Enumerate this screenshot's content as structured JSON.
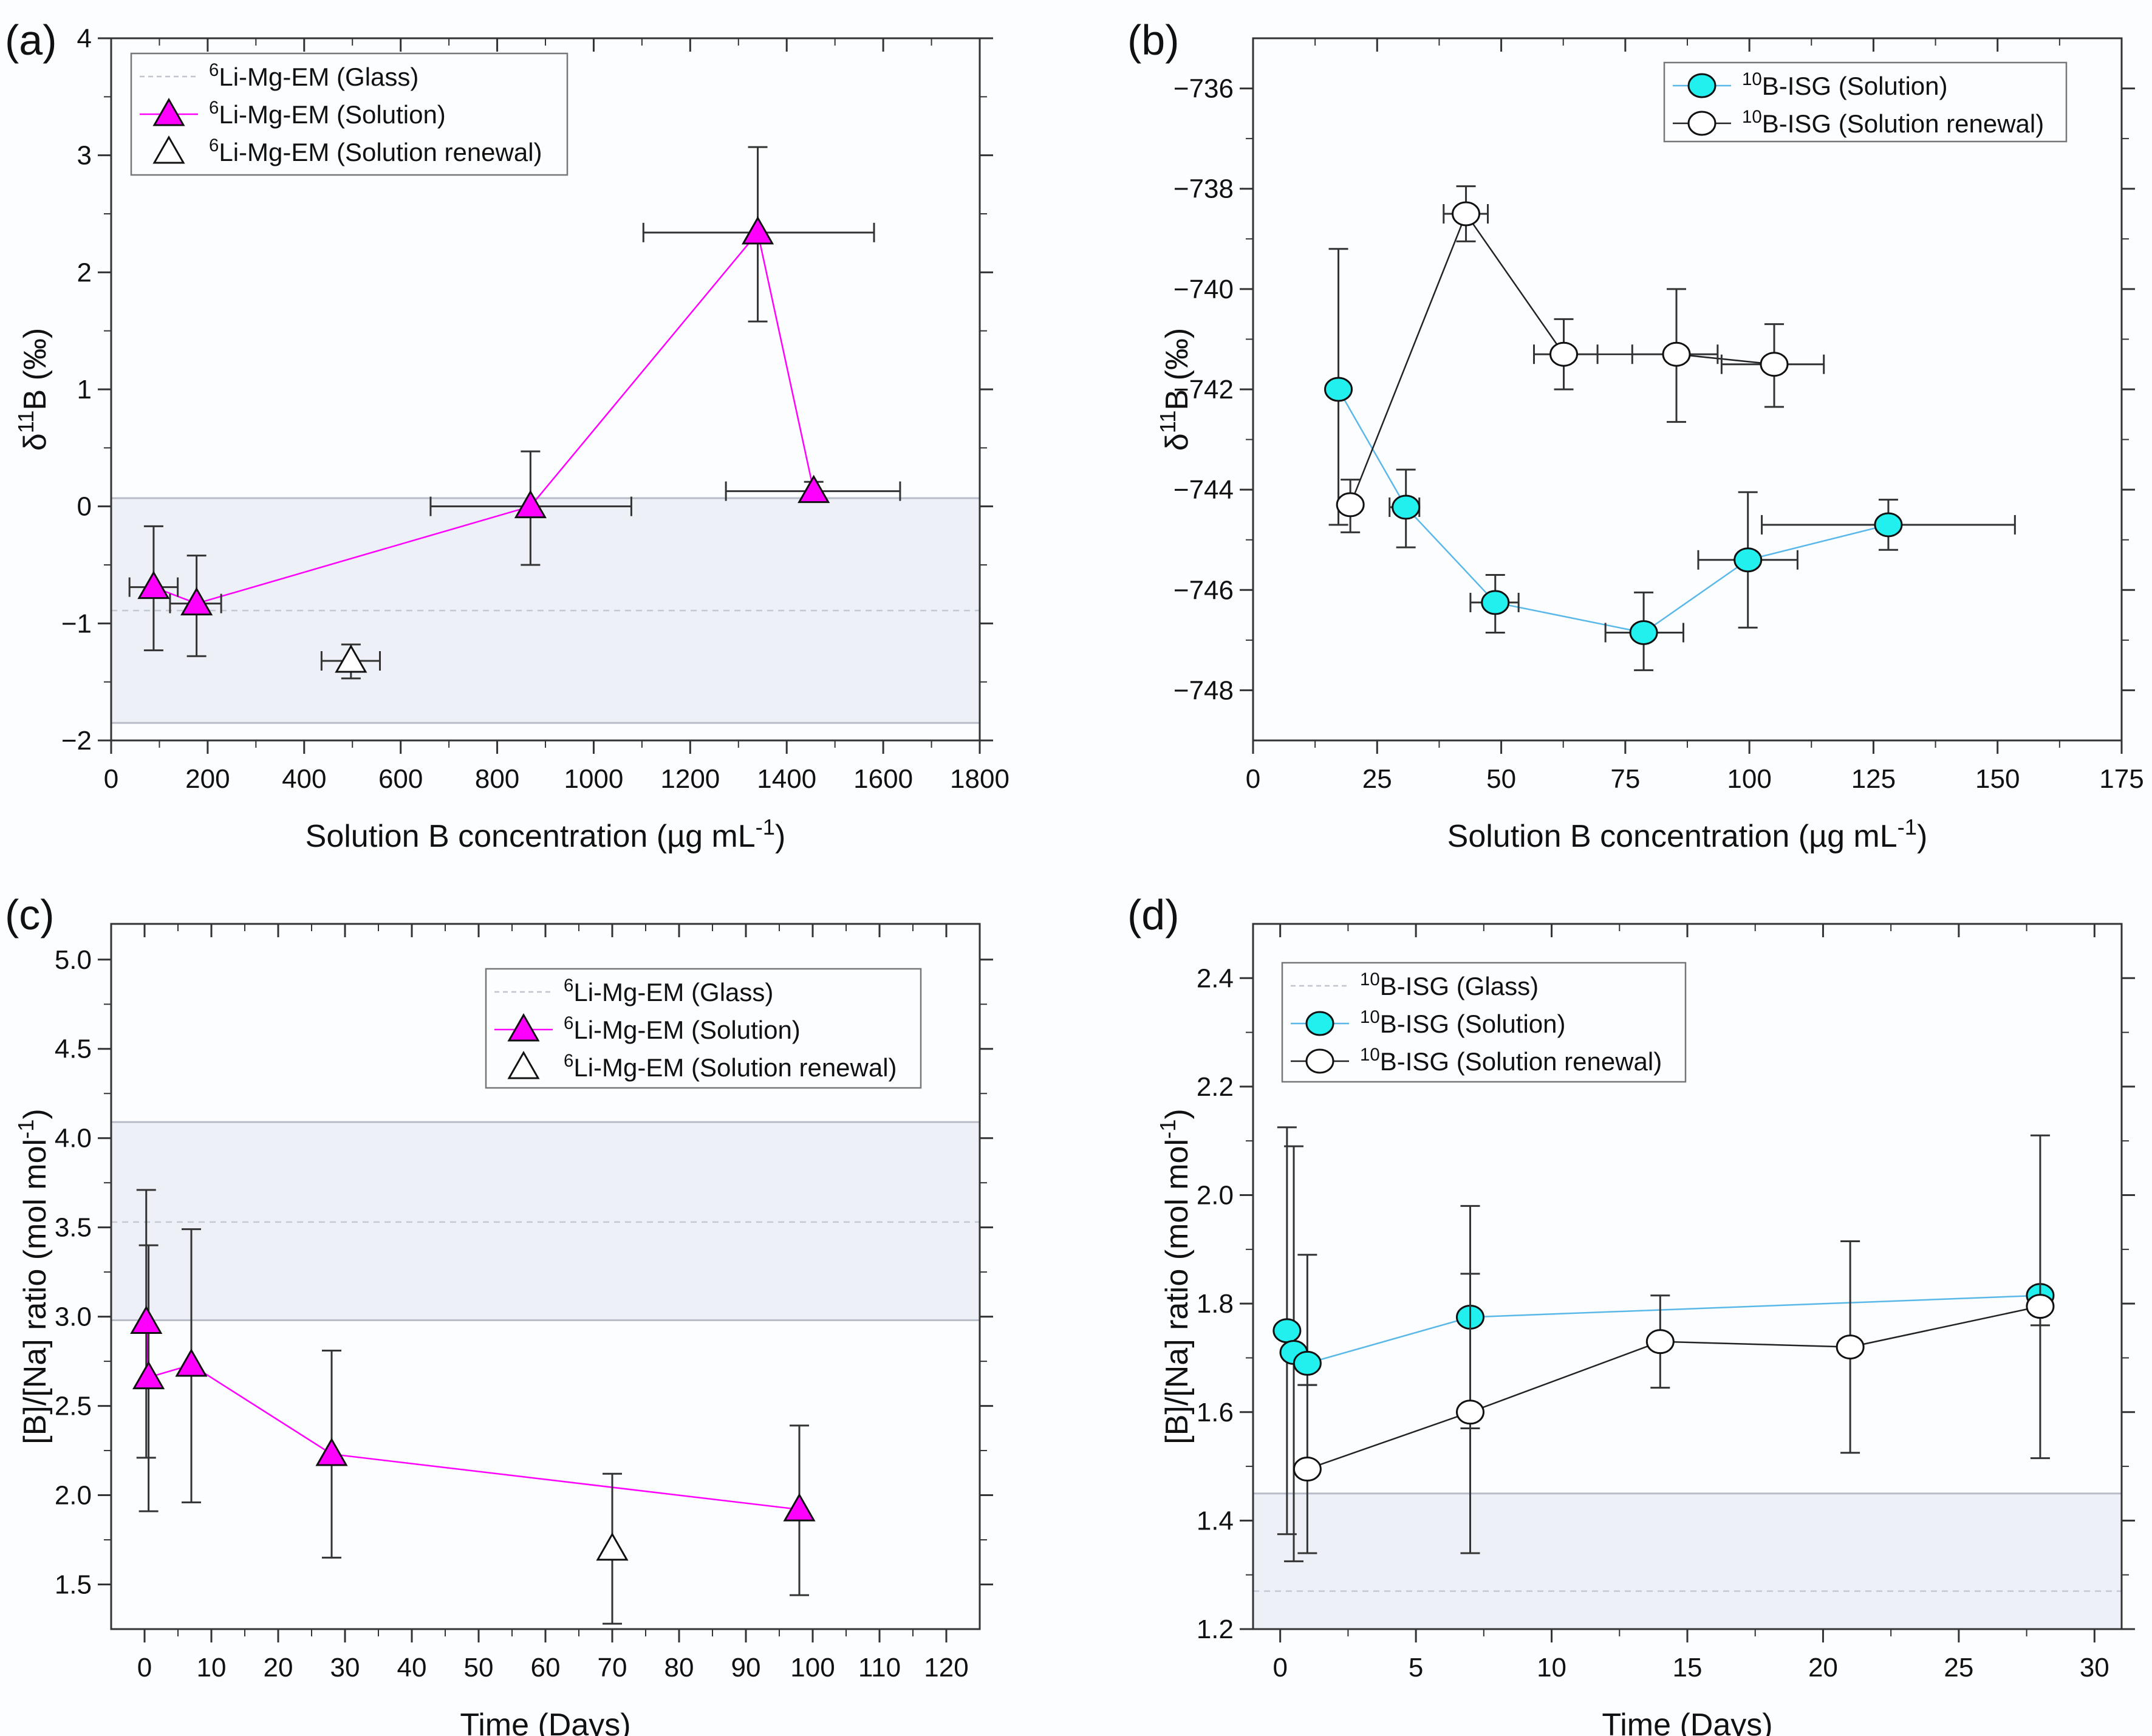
{
  "figure": {
    "panels": [
      "(a)",
      "(b)",
      "(c)",
      "(d)"
    ]
  },
  "chart_data": [
    {
      "id": "a",
      "panel_label": "(a)",
      "type": "scatter",
      "xlabel": "Solution B concentration (µg mL",
      "xlabel_sup": "-1",
      "xlabel_end": ")",
      "ylabel": "δ",
      "ylabel_sup": "11",
      "ylabel_end": "B (‰)",
      "xlim": [
        0,
        1800
      ],
      "ylim": [
        -2,
        4
      ],
      "xticks": [
        0,
        200,
        400,
        600,
        800,
        1000,
        1200,
        1400,
        1600,
        1800
      ],
      "yticks": [
        -2,
        -1,
        0,
        1,
        2,
        3,
        4
      ],
      "ytick_labels": [
        "−2",
        "−1",
        "0",
        "1",
        "2",
        "3",
        "4"
      ],
      "legend_position": "top-left",
      "band": {
        "y_min": -1.85,
        "y_max": 0.07,
        "color": "#eef0f8",
        "edge": "#b8bcc8"
      },
      "reference_line": {
        "y": -0.89,
        "name": "Glass"
      },
      "series": [
        {
          "name": "Li-Mg-EM (Glass)",
          "sup": "6",
          "label": "Li-Mg-EM (Glass)",
          "kind": "dashed",
          "color": "#c0c4cc",
          "points": []
        },
        {
          "name": "Li-Mg-EM (Solution)",
          "sup": "6",
          "label": "Li-Mg-EM (Solution)",
          "kind": "triangle-filled",
          "color": "#ff00ff",
          "line": true,
          "points": [
            {
              "x": 88,
              "y": -0.69,
              "ylo": -1.23,
              "yhi": -0.17,
              "xlo": 38,
              "xhi": 138
            },
            {
              "x": 177,
              "y": -0.83,
              "ylo": -1.28,
              "yhi": -0.42,
              "xlo": 122,
              "xhi": 228
            },
            {
              "x": 869,
              "y": 0.0,
              "ylo": -0.5,
              "yhi": 0.47,
              "xlo": 662,
              "xhi": 1078
            },
            {
              "x": 1340,
              "y": 2.34,
              "ylo": 1.58,
              "yhi": 3.07,
              "xlo": 1103,
              "xhi": 1581
            },
            {
              "x": 1456,
              "y": 0.13,
              "ylo": 0.04,
              "yhi": 0.21,
              "xlo": 1274,
              "xhi": 1635
            }
          ]
        },
        {
          "name": "Li-Mg-EM (Solution renewal)",
          "sup": "6",
          "label": "Li-Mg-EM (Solution renewal)",
          "kind": "triangle-open",
          "color": "#ffffff",
          "line": false,
          "points": [
            {
              "x": 497,
              "y": -1.32,
              "ylo": -1.47,
              "yhi": -1.18,
              "xlo": 436,
              "xhi": 557
            }
          ]
        }
      ]
    },
    {
      "id": "b",
      "panel_label": "(b)",
      "type": "scatter",
      "xlabel": "Solution B concentration (µg mL",
      "xlabel_sup": "-1",
      "xlabel_end": ")",
      "ylabel": "δ",
      "ylabel_sup": "11",
      "ylabel_end": "B (‰)",
      "xlim": [
        0,
        175
      ],
      "ylim": [
        -749,
        -735
      ],
      "xticks": [
        0,
        25,
        50,
        75,
        100,
        125,
        150,
        175
      ],
      "yticks": [
        -748,
        -746,
        -744,
        -742,
        -740,
        -738,
        -736
      ],
      "ytick_labels": [
        "−748",
        "−746",
        "−744",
        "−742",
        "−740",
        "−738",
        "−736"
      ],
      "legend_position": "top-right",
      "band": null,
      "reference_line": null,
      "series": [
        {
          "name": "B-ISG (Solution)",
          "sup": "10",
          "label": "B-ISG (Solution)",
          "kind": "circle-filled",
          "color": "#22f0ee",
          "linecolor": "#5ab8e8",
          "line": true,
          "points": [
            {
              "x": 17.2,
              "y": -742.0,
              "ylo": -744.7,
              "yhi": -739.2
            },
            {
              "x": 30.8,
              "y": -744.35,
              "ylo": -745.15,
              "yhi": -743.6,
              "xlo": 27.5,
              "xhi": 33.5
            },
            {
              "x": 48.8,
              "y": -746.25,
              "ylo": -746.85,
              "yhi": -745.7,
              "xlo": 43.8,
              "xhi": 53.5
            },
            {
              "x": 78.7,
              "y": -746.85,
              "ylo": -747.6,
              "yhi": -746.05,
              "xlo": 71.0,
              "xhi": 86.7
            },
            {
              "x": 99.7,
              "y": -745.4,
              "ylo": -746.75,
              "yhi": -744.05,
              "xlo": 89.7,
              "xhi": 109.7
            },
            {
              "x": 128.0,
              "y": -744.7,
              "ylo": -745.2,
              "yhi": -744.2,
              "xlo": 102.5,
              "xhi": 153.5
            }
          ]
        },
        {
          "name": "B-ISG (Solution renewal)",
          "sup": "10",
          "label": "B-ISG (Solution renewal)",
          "kind": "circle-open",
          "color": "#ffffff",
          "linecolor": "#222222",
          "line": true,
          "points": [
            {
              "x": 19.6,
              "y": -744.3,
              "ylo": -744.85,
              "yhi": -743.8,
              "xlo": 18.5,
              "xhi": 21.0
            },
            {
              "x": 42.9,
              "y": -738.5,
              "ylo": -739.05,
              "yhi": -737.95,
              "xlo": 38.4,
              "xhi": 47.3
            },
            {
              "x": 62.6,
              "y": -741.3,
              "ylo": -742.0,
              "yhi": -740.6,
              "xlo": 56.6,
              "xhi": 69.4
            },
            {
              "x": 85.3,
              "y": -741.3,
              "ylo": -742.65,
              "yhi": -740.0,
              "xlo": 76.4,
              "xhi": 93.6
            },
            {
              "x": 105.0,
              "y": -741.5,
              "ylo": -742.35,
              "yhi": -740.7,
              "xlo": 94.4,
              "xhi": 115.0
            }
          ]
        }
      ]
    },
    {
      "id": "c",
      "panel_label": "(c)",
      "type": "scatter",
      "xlabel": "Time (Days)",
      "xlabel_sup": "",
      "xlabel_end": "",
      "ylabel": "[B]/[Na] ratio (mol mol",
      "ylabel_sup": "-1",
      "ylabel_end": ")",
      "xlim": [
        -5,
        125
      ],
      "ylim": [
        1.25,
        5.2
      ],
      "xticks": [
        0,
        10,
        20,
        30,
        40,
        50,
        60,
        70,
        80,
        90,
        100,
        110,
        120
      ],
      "yticks": [
        1.5,
        2.0,
        2.5,
        3.0,
        3.5,
        4.0,
        4.5,
        5.0
      ],
      "ytick_labels": [
        "1.5",
        "2.0",
        "2.5",
        "3.0",
        "3.5",
        "4.0",
        "4.5",
        "5.0"
      ],
      "legend_position": "top-right",
      "band": {
        "y_min": 2.98,
        "y_max": 4.09,
        "color": "#eef0f8",
        "edge": "#b8bcc8"
      },
      "reference_line": {
        "y": 3.53,
        "name": "Glass"
      },
      "series": [
        {
          "name": "Li-Mg-EM (Glass)",
          "sup": "6",
          "label": "Li-Mg-EM (Glass)",
          "kind": "dashed",
          "color": "#c0c4cc",
          "points": []
        },
        {
          "name": "Li-Mg-EM (Solution)",
          "sup": "6",
          "label": "Li-Mg-EM (Solution)",
          "kind": "triangle-filled",
          "color": "#ff00ff",
          "line": true,
          "points": [
            {
              "x": 0.25,
              "y": 2.97,
              "ylo": 2.21,
              "yhi": 3.71
            },
            {
              "x": 0.6,
              "y": 2.66,
              "ylo": 1.91,
              "yhi": 3.4
            },
            {
              "x": 7,
              "y": 2.73,
              "ylo": 1.96,
              "yhi": 3.49
            },
            {
              "x": 28,
              "y": 2.23,
              "ylo": 1.65,
              "yhi": 2.81
            },
            {
              "x": 98,
              "y": 1.92,
              "ylo": 1.44,
              "yhi": 2.39
            }
          ]
        },
        {
          "name": "Li-Mg-EM (Solution renewal)",
          "sup": "6",
          "label": "Li-Mg-EM (Solution renewal)",
          "kind": "triangle-open",
          "color": "#ffffff",
          "line": false,
          "points": [
            {
              "x": 70,
              "y": 1.7,
              "ylo": 1.28,
              "yhi": 2.12
            }
          ]
        }
      ]
    },
    {
      "id": "d",
      "panel_label": "(d)",
      "type": "scatter",
      "xlabel": "Time (Days)",
      "xlabel_sup": "",
      "xlabel_end": "",
      "ylabel": "[B]/[Na] ratio (mol mol",
      "ylabel_sup": "-1",
      "ylabel_end": ")",
      "xlim": [
        -1,
        31
      ],
      "ylim": [
        1.2,
        2.5
      ],
      "xticks": [
        0,
        5,
        10,
        15,
        20,
        25,
        30
      ],
      "yticks": [
        1.2,
        1.4,
        1.6,
        1.8,
        2.0,
        2.2,
        2.4
      ],
      "ytick_labels": [
        "1.2",
        "1.4",
        "1.6",
        "1.8",
        "2.0",
        "2.2",
        "2.4"
      ],
      "legend_position": "top-left",
      "band": {
        "y_min": 1.2,
        "y_max": 1.45,
        "color": "#eef0f8",
        "edge": "#b8bcc8"
      },
      "reference_line": {
        "y": 1.27,
        "name": "Glass"
      },
      "series": [
        {
          "name": "B-ISG (Glass)",
          "sup": "10",
          "label": "B-ISG (Glass)",
          "kind": "dashed",
          "color": "#c0c4cc",
          "points": []
        },
        {
          "name": "B-ISG (Solution)",
          "sup": "10",
          "label": "B-ISG (Solution)",
          "kind": "circle-filled",
          "color": "#22f0ee",
          "linecolor": "#5ab8e8",
          "line": true,
          "points": [
            {
              "x": 0.25,
              "y": 1.75,
              "ylo": 1.375,
              "yhi": 2.125
            },
            {
              "x": 0.5,
              "y": 1.71,
              "ylo": 1.325,
              "yhi": 2.09
            },
            {
              "x": 1,
              "y": 1.69,
              "ylo": 1.65,
              "yhi": 1.89
            },
            {
              "x": 7,
              "y": 1.775,
              "ylo": 1.57,
              "yhi": 1.98
            },
            {
              "x": 28,
              "y": 1.815,
              "ylo": 1.76,
              "yhi": 1.83
            }
          ]
        },
        {
          "name": "B-ISG (Solution renewal)",
          "sup": "10",
          "label": "B-ISG (Solution renewal)",
          "kind": "circle-open",
          "color": "#ffffff",
          "linecolor": "#222222",
          "line": true,
          "points": [
            {
              "x": 1,
              "y": 1.495,
              "ylo": 1.34,
              "yhi": 1.65
            },
            {
              "x": 7,
              "y": 1.6,
              "ylo": 1.34,
              "yhi": 1.855
            },
            {
              "x": 14,
              "y": 1.73,
              "ylo": 1.645,
              "yhi": 1.815
            },
            {
              "x": 21,
              "y": 1.72,
              "ylo": 1.525,
              "yhi": 1.915
            },
            {
              "x": 28,
              "y": 1.795,
              "ylo": 1.515,
              "yhi": 2.11
            }
          ]
        }
      ]
    }
  ]
}
